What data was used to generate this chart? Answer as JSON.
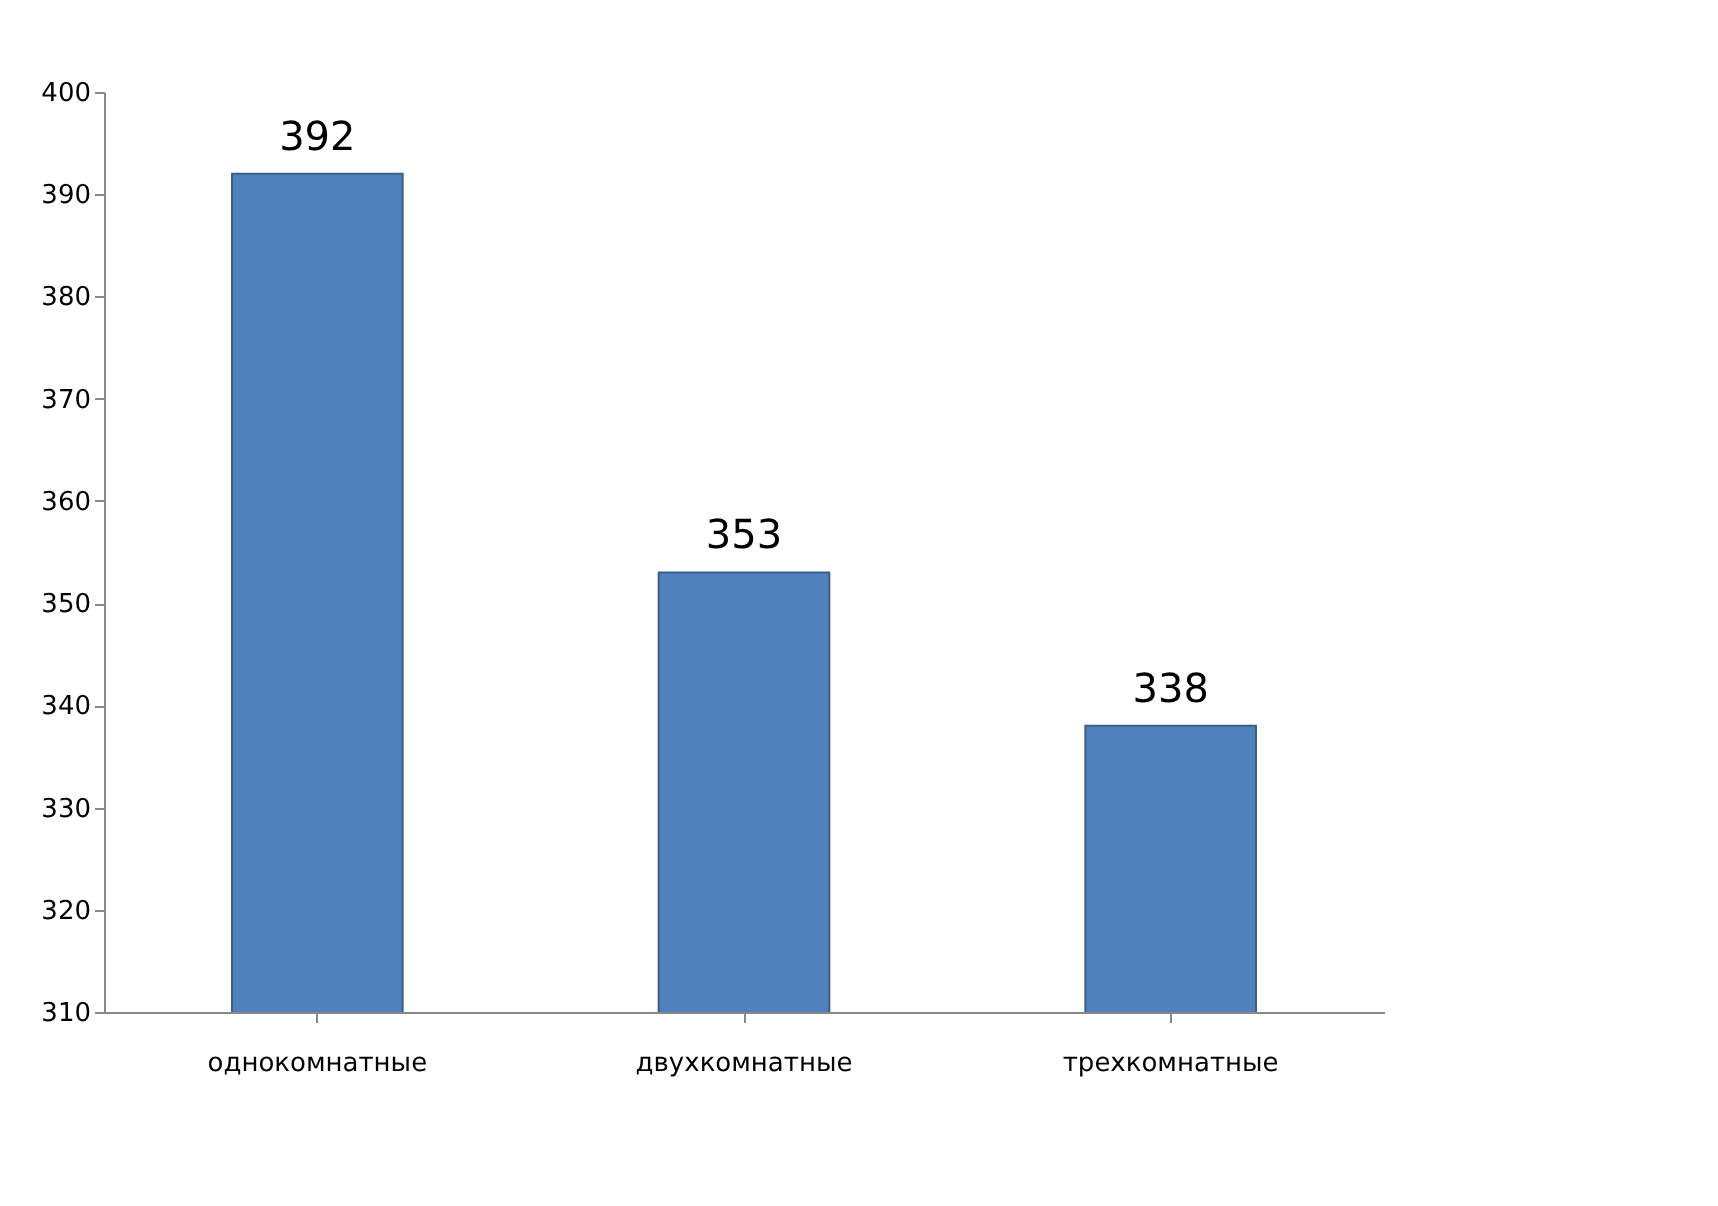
{
  "chart_data": {
    "type": "bar",
    "categories": [
      "однокомнатные",
      "двухкомнатные",
      "трехкомнатные"
    ],
    "values": [
      392,
      353,
      338
    ],
    "color": "#4f81bd",
    "ylim": [
      310,
      400
    ],
    "yticks": [
      310,
      320,
      330,
      340,
      350,
      360,
      370,
      380,
      390,
      400
    ],
    "data_labels": true,
    "grid": false
  }
}
